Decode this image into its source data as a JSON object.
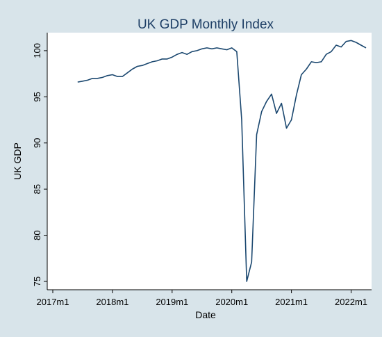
{
  "chart_data": {
    "type": "line",
    "title": "UK GDP Monthly Index",
    "xlabel": "Date",
    "ylabel": "UK GDP",
    "ylim": [
      75,
      101.5
    ],
    "xlim": [
      "2017-01",
      "2022-04"
    ],
    "grid": false,
    "legend": "none",
    "line_color": "#1a476f",
    "plot_background": "#ffffff",
    "page_background": "#d8e4ea",
    "title_color": "#1e3f66",
    "x_ticks": [
      {
        "label": "2017m1",
        "value": "2017-01"
      },
      {
        "label": "2018m1",
        "value": "2018-01"
      },
      {
        "label": "2019m1",
        "value": "2019-01"
      },
      {
        "label": "2020m1",
        "value": "2020-01"
      },
      {
        "label": "2021m1",
        "value": "2021-01"
      },
      {
        "label": "2022m1",
        "value": "2022-01"
      }
    ],
    "y_ticks": [
      {
        "label": "75",
        "value": 75
      },
      {
        "label": "80",
        "value": 80
      },
      {
        "label": "85",
        "value": 85
      },
      {
        "label": "90",
        "value": 90
      },
      {
        "label": "95",
        "value": 95
      },
      {
        "label": "100",
        "value": 100
      }
    ],
    "series": [
      {
        "x": [
          "2017-06",
          "2017-07",
          "2017-08",
          "2017-09",
          "2017-10",
          "2017-11",
          "2017-12",
          "2018-01",
          "2018-02",
          "2018-03",
          "2018-04",
          "2018-05",
          "2018-06",
          "2018-07",
          "2018-08",
          "2018-09",
          "2018-10",
          "2018-11",
          "2018-12",
          "2019-01",
          "2019-02",
          "2019-03",
          "2019-04",
          "2019-05",
          "2019-06",
          "2019-07",
          "2019-08",
          "2019-09",
          "2019-10",
          "2019-11",
          "2019-12",
          "2020-01",
          "2020-02",
          "2020-03",
          "2020-04",
          "2020-05",
          "2020-06",
          "2020-07",
          "2020-08",
          "2020-09",
          "2020-10",
          "2020-11",
          "2020-12",
          "2021-01",
          "2021-02",
          "2021-03",
          "2021-04",
          "2021-05",
          "2021-06",
          "2021-07",
          "2021-08",
          "2021-09",
          "2021-10",
          "2021-11",
          "2021-12",
          "2022-01",
          "2022-02",
          "2022-03",
          "2022-04"
        ],
        "values": [
          96.6,
          96.7,
          96.8,
          97.0,
          97.0,
          97.1,
          97.3,
          97.4,
          97.2,
          97.2,
          97.6,
          98.0,
          98.3,
          98.4,
          98.6,
          98.8,
          98.9,
          99.1,
          99.1,
          99.3,
          99.6,
          99.8,
          99.6,
          99.9,
          100.0,
          100.2,
          100.3,
          100.2,
          100.3,
          100.2,
          100.1,
          100.3,
          99.9,
          92.5,
          75.0,
          77.1,
          90.9,
          93.4,
          94.5,
          95.3,
          93.2,
          94.3,
          91.6,
          92.5,
          95.2,
          97.4,
          98.0,
          98.8,
          98.7,
          98.8,
          99.6,
          99.9,
          100.6,
          100.4,
          101.0,
          101.1,
          100.9,
          100.6,
          100.3
        ]
      }
    ]
  }
}
